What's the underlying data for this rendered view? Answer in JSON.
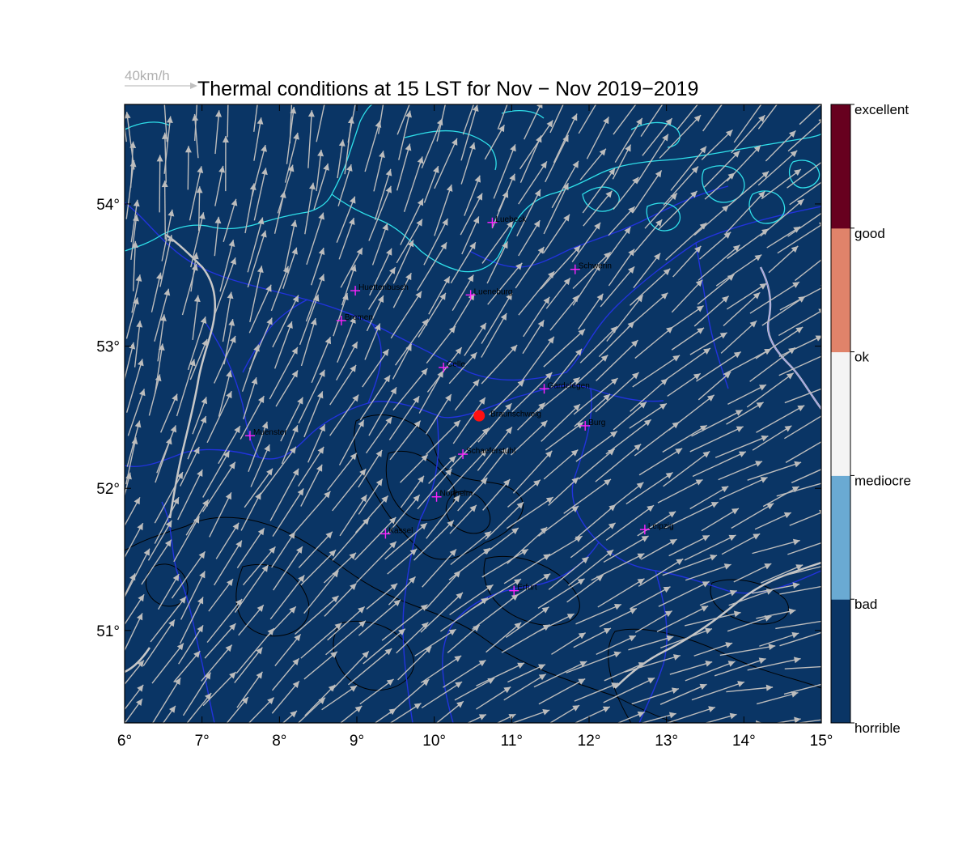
{
  "title": "Thermal conditions at 15 LST for Nov − Nov  2019−2019",
  "reference_vector": {
    "label": "40km/h",
    "speed": 40
  },
  "map": {
    "lon_range": [
      6,
      15
    ],
    "lat_range": [
      50.35,
      54.7
    ],
    "x_ticks": [
      {
        "value": 6,
        "label": "6°"
      },
      {
        "value": 7,
        "label": "7°"
      },
      {
        "value": 8,
        "label": "8°"
      },
      {
        "value": 9,
        "label": "9°"
      },
      {
        "value": 10,
        "label": "10°"
      },
      {
        "value": 11,
        "label": "11°"
      },
      {
        "value": 12,
        "label": "12°"
      },
      {
        "value": 13,
        "label": "13°"
      },
      {
        "value": 14,
        "label": "14°"
      },
      {
        "value": 15,
        "label": "15°"
      }
    ],
    "y_ticks": [
      {
        "value": 51,
        "label": "51°"
      },
      {
        "value": 52,
        "label": "52°"
      },
      {
        "value": 53,
        "label": "53°"
      },
      {
        "value": 54,
        "label": "54°"
      }
    ],
    "background_class": "horrible",
    "colors": {
      "background": "#0a3565",
      "coastline": "#2fe0ea",
      "borders": "#2233dd",
      "terrain": "#000000",
      "rivers": "#c8c8c8",
      "wind_arrows": "#bdbdbd",
      "city_marker": "#ff22ff",
      "home_marker": "#ff1111"
    }
  },
  "colorbar": [
    {
      "label": "excellent",
      "color": "#67001f"
    },
    {
      "label": "good",
      "color": "#e0836a"
    },
    {
      "label": "ok",
      "color": "#f4f4f4"
    },
    {
      "label": "mediocre",
      "color": "#f4f4f4"
    },
    {
      "label": "bad",
      "color": "#6aaad3"
    },
    {
      "label": "horrible",
      "color": "#0a3565"
    }
  ],
  "colorbar_bands": [
    "#0a3565",
    "#6aaad3",
    "#f4f4f4",
    "#e0836a",
    "#67001f"
  ],
  "cities": [
    {
      "name": "Luebeck",
      "lon": 10.75,
      "lat": 53.87
    },
    {
      "name": "Schwerin",
      "lon": 11.82,
      "lat": 53.54
    },
    {
      "name": "Huettenbusch",
      "lon": 8.98,
      "lat": 53.39
    },
    {
      "name": "Lueneburg",
      "lon": 10.47,
      "lat": 53.36
    },
    {
      "name": "Bremen",
      "lon": 8.8,
      "lat": 53.18
    },
    {
      "name": "Celle",
      "lon": 10.12,
      "lat": 52.85
    },
    {
      "name": "Gardelegen",
      "lon": 11.42,
      "lat": 52.7
    },
    {
      "name": "Burg",
      "lon": 11.95,
      "lat": 52.44
    },
    {
      "name": "Muenster",
      "lon": 7.62,
      "lat": 52.37
    },
    {
      "name": "Schaeferstuhl",
      "lon": 10.37,
      "lat": 52.24
    },
    {
      "name": "Northeim",
      "lon": 10.03,
      "lat": 51.94
    },
    {
      "name": "Leipzig",
      "lon": 12.72,
      "lat": 51.71
    },
    {
      "name": "Kassel",
      "lon": 9.37,
      "lat": 51.68
    },
    {
      "name": "Erfurt",
      "lon": 11.03,
      "lat": 51.28
    }
  ],
  "home": {
    "name": "Braunschweig",
    "lon": 10.58,
    "lat": 52.51
  }
}
